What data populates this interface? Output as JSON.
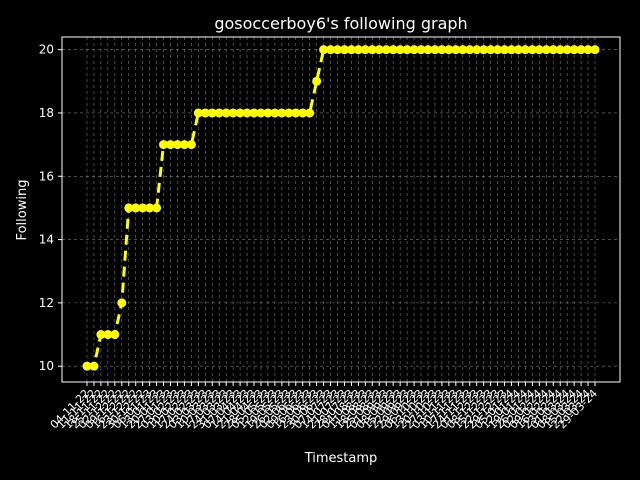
{
  "chart_data": {
    "type": "line",
    "title": "gosoccerboy6's following graph",
    "xlabel": "Timestamp",
    "ylabel": "Following",
    "ylim": [
      9.5,
      20.4
    ],
    "yticks": [
      10,
      12,
      14,
      16,
      18,
      20
    ],
    "grid": true,
    "colors": {
      "background": "#000000",
      "line": "#ffff00",
      "grid": "#b0b0b0",
      "text": "#ffffff"
    },
    "line_style": "dashed",
    "marker": "circle",
    "categories": [
      "04-11-22",
      "11-11-22",
      "18-11-22",
      "25-11-22",
      "02-12-22",
      "09-12-22",
      "16-12-22",
      "23-12-22",
      "30-12-22",
      "06-01-23",
      "13-01-23",
      "20-01-23",
      "27-01-23",
      "03-02-23",
      "10-02-23",
      "17-02-23",
      "24-02-23",
      "03-03-23",
      "10-03-23",
      "17-03-23",
      "24-03-23",
      "31-03-23",
      "07-04-23",
      "14-04-23",
      "21-04-23",
      "28-04-23",
      "05-05-23",
      "12-05-23",
      "19-05-23",
      "26-05-23",
      "02-06-23",
      "09-06-23",
      "16-06-23",
      "23-06-23",
      "30-06-23",
      "07-07-23",
      "14-07-23",
      "21-07-23",
      "28-07-23",
      "04-08-23",
      "11-08-23",
      "18-08-23",
      "25-08-23",
      "01-09-23",
      "08-09-23",
      "15-09-23",
      "22-09-23",
      "29-09-23",
      "06-10-23",
      "13-10-23",
      "20-10-23",
      "27-10-23",
      "03-11-23",
      "10-11-23",
      "17-11-23",
      "24-11-23",
      "01-12-23",
      "08-12-23",
      "15-12-23",
      "22-12-23",
      "29-12-23",
      "05-01-24",
      "12-01-24",
      "19-01-24",
      "26-01-24",
      "02-02-24",
      "09-02-24",
      "16-02-24",
      "23-02-24",
      "01-03-24",
      "08-03-24",
      "15-03-24",
      "22-03-24",
      "29-03-24"
    ],
    "values": [
      10,
      10,
      11,
      11,
      11,
      12,
      15,
      15,
      15,
      15,
      15,
      17,
      17,
      17,
      17,
      17,
      18,
      18,
      18,
      18,
      18,
      18,
      18,
      18,
      18,
      18,
      18,
      18,
      18,
      18,
      18,
      18,
      18,
      19,
      20,
      20,
      20,
      20,
      20,
      20,
      20,
      20,
      20,
      20,
      20,
      20,
      20,
      20,
      20,
      20,
      20,
      20,
      20,
      20,
      20,
      20,
      20,
      20,
      20,
      20,
      20,
      20,
      20,
      20,
      20,
      20,
      20,
      20,
      20,
      20,
      20,
      20,
      20,
      20
    ]
  }
}
